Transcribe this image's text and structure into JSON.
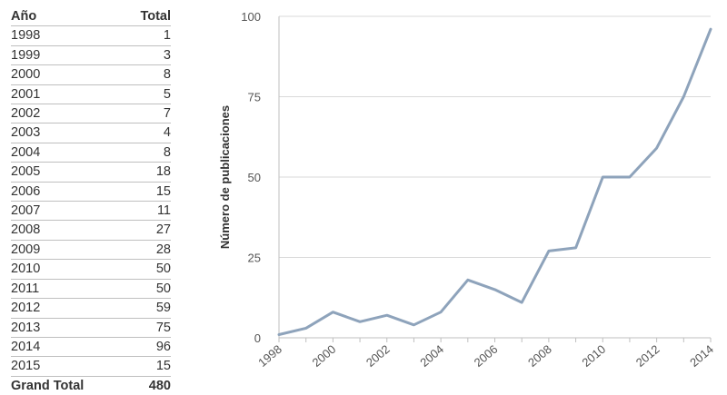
{
  "table": {
    "header": {
      "year": "Año",
      "total": "Total"
    },
    "rows": [
      {
        "year": "1998",
        "total": "1"
      },
      {
        "year": "1999",
        "total": "3"
      },
      {
        "year": "2000",
        "total": "8"
      },
      {
        "year": "2001",
        "total": "5"
      },
      {
        "year": "2002",
        "total": "7"
      },
      {
        "year": "2003",
        "total": "4"
      },
      {
        "year": "2004",
        "total": "8"
      },
      {
        "year": "2005",
        "total": "18"
      },
      {
        "year": "2006",
        "total": "15"
      },
      {
        "year": "2007",
        "total": "11"
      },
      {
        "year": "2008",
        "total": "27"
      },
      {
        "year": "2009",
        "total": "28"
      },
      {
        "year": "2010",
        "total": "50"
      },
      {
        "year": "2011",
        "total": "50"
      },
      {
        "year": "2012",
        "total": "59"
      },
      {
        "year": "2013",
        "total": "75"
      },
      {
        "year": "2014",
        "total": "96"
      },
      {
        "year": "2015",
        "total": "15"
      }
    ],
    "grand_total": {
      "label": "Grand Total",
      "value": "480"
    }
  },
  "chart_data": {
    "type": "line",
    "ylabel": "Número de publicaciones",
    "ylim": [
      0,
      100
    ],
    "yticks": [
      0,
      25,
      50,
      75,
      100
    ],
    "x": [
      1998,
      1999,
      2000,
      2001,
      2002,
      2003,
      2004,
      2005,
      2006,
      2007,
      2008,
      2009,
      2010,
      2011,
      2012,
      2013,
      2014
    ],
    "xticks": [
      "1998",
      "2000",
      "2002",
      "2004",
      "2006",
      "2008",
      "2010",
      "2012",
      "2014"
    ],
    "series": [
      {
        "values": [
          1,
          3,
          8,
          5,
          7,
          4,
          8,
          18,
          15,
          11,
          27,
          28,
          50,
          50,
          59,
          75,
          96
        ],
        "color": "#8ea3bb"
      }
    ],
    "grid": true
  }
}
